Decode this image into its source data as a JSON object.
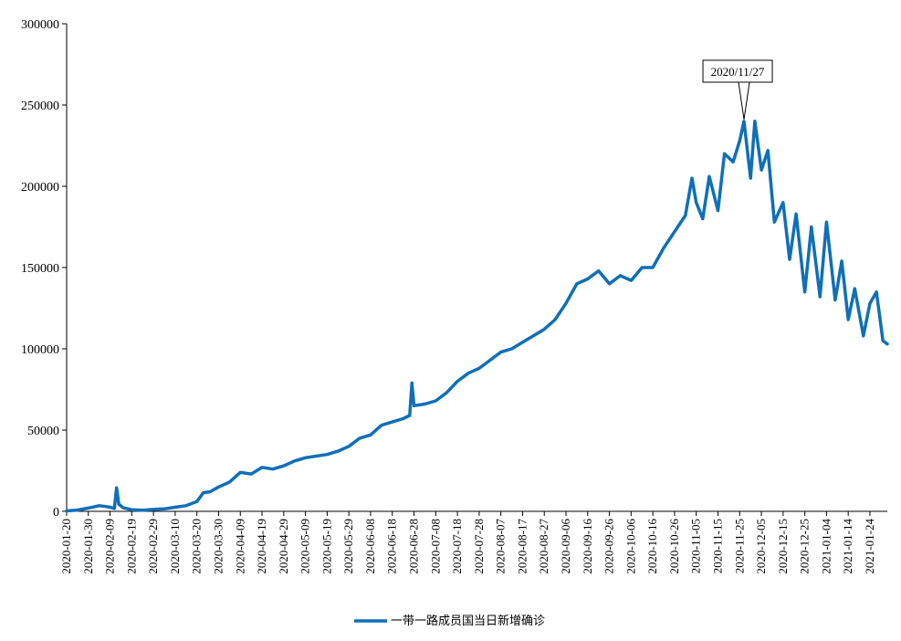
{
  "chart_data": {
    "type": "line",
    "title": "",
    "xlabel": "",
    "ylabel": "",
    "ylim": [
      0,
      300000
    ],
    "yticks": [
      0,
      50000,
      100000,
      150000,
      200000,
      250000,
      300000
    ],
    "yticks_labels": [
      "0",
      "50000",
      "100000",
      "150000",
      "200000",
      "250000",
      "300000"
    ],
    "xticks_labels": [
      "2020-01-20",
      "2020-01-30",
      "2020-02-09",
      "2020-02-19",
      "2020-02-29",
      "2020-03-10",
      "2020-03-20",
      "2020-03-30",
      "2020-04-09",
      "2020-04-19",
      "2020-04-29",
      "2020-05-09",
      "2020-05-19",
      "2020-05-29",
      "2020-06-08",
      "2020-06-18",
      "2020-06-28",
      "2020-07-08",
      "2020-07-18",
      "2020-07-28",
      "2020-08-07",
      "2020-08-17",
      "2020-08-27",
      "2020-09-06",
      "2020-09-16",
      "2020-09-26",
      "2020-10-06",
      "2020-10-16",
      "2020-10-26",
      "2020-11-05",
      "2020-11-15",
      "2020-11-25",
      "2020-12-05",
      "2020-12-15",
      "2020-12-25",
      "2021-01-04",
      "2021-01-14",
      "2021-01-24"
    ],
    "x_start": "2020-01-20",
    "x_end": "2021-02-01",
    "grid": false,
    "legend_position": "bottom",
    "line_color": "#0F6FB8",
    "series": [
      {
        "name": "一带一路成员国当日新增确诊",
        "points": [
          [
            "2020-01-20",
            300
          ],
          [
            "2020-01-25",
            800
          ],
          [
            "2020-01-30",
            2000
          ],
          [
            "2020-02-04",
            3500
          ],
          [
            "2020-02-07",
            3000
          ],
          [
            "2020-02-09",
            2500
          ],
          [
            "2020-02-11",
            1800
          ],
          [
            "2020-02-12",
            14500
          ],
          [
            "2020-02-13",
            4500
          ],
          [
            "2020-02-15",
            2200
          ],
          [
            "2020-02-19",
            1000
          ],
          [
            "2020-02-24",
            700
          ],
          [
            "2020-02-29",
            1200
          ],
          [
            "2020-03-05",
            1500
          ],
          [
            "2020-03-10",
            2500
          ],
          [
            "2020-03-15",
            3500
          ],
          [
            "2020-03-20",
            6000
          ],
          [
            "2020-03-23",
            11500
          ],
          [
            "2020-03-26",
            12000
          ],
          [
            "2020-03-30",
            15000
          ],
          [
            "2020-04-04",
            18000
          ],
          [
            "2020-04-09",
            24000
          ],
          [
            "2020-04-14",
            23000
          ],
          [
            "2020-04-19",
            27000
          ],
          [
            "2020-04-24",
            26000
          ],
          [
            "2020-04-29",
            28000
          ],
          [
            "2020-05-04",
            31000
          ],
          [
            "2020-05-09",
            33000
          ],
          [
            "2020-05-14",
            34000
          ],
          [
            "2020-05-19",
            35000
          ],
          [
            "2020-05-24",
            37000
          ],
          [
            "2020-05-29",
            40000
          ],
          [
            "2020-06-03",
            45000
          ],
          [
            "2020-06-08",
            47000
          ],
          [
            "2020-06-13",
            53000
          ],
          [
            "2020-06-18",
            55000
          ],
          [
            "2020-06-23",
            57000
          ],
          [
            "2020-06-26",
            59000
          ],
          [
            "2020-06-27",
            79000
          ],
          [
            "2020-06-28",
            65000
          ],
          [
            "2020-07-03",
            66000
          ],
          [
            "2020-07-08",
            68000
          ],
          [
            "2020-07-13",
            73000
          ],
          [
            "2020-07-18",
            80000
          ],
          [
            "2020-07-23",
            85000
          ],
          [
            "2020-07-28",
            88000
          ],
          [
            "2020-08-02",
            93000
          ],
          [
            "2020-08-07",
            98000
          ],
          [
            "2020-08-12",
            100000
          ],
          [
            "2020-08-17",
            104000
          ],
          [
            "2020-08-22",
            108000
          ],
          [
            "2020-08-27",
            112000
          ],
          [
            "2020-09-01",
            118000
          ],
          [
            "2020-09-06",
            128000
          ],
          [
            "2020-09-11",
            140000
          ],
          [
            "2020-09-16",
            143000
          ],
          [
            "2020-09-21",
            148000
          ],
          [
            "2020-09-26",
            140000
          ],
          [
            "2020-10-01",
            145000
          ],
          [
            "2020-10-06",
            142000
          ],
          [
            "2020-10-11",
            150000
          ],
          [
            "2020-10-16",
            150000
          ],
          [
            "2020-10-21",
            162000
          ],
          [
            "2020-10-26",
            172000
          ],
          [
            "2020-10-31",
            182000
          ],
          [
            "2020-11-03",
            205000
          ],
          [
            "2020-11-05",
            190000
          ],
          [
            "2020-11-08",
            180000
          ],
          [
            "2020-11-11",
            206000
          ],
          [
            "2020-11-15",
            185000
          ],
          [
            "2020-11-18",
            220000
          ],
          [
            "2020-11-22",
            215000
          ],
          [
            "2020-11-25",
            228000
          ],
          [
            "2020-11-27",
            240000
          ],
          [
            "2020-11-30",
            205000
          ],
          [
            "2020-12-02",
            240000
          ],
          [
            "2020-12-05",
            210000
          ],
          [
            "2020-12-08",
            222000
          ],
          [
            "2020-12-11",
            178000
          ],
          [
            "2020-12-15",
            190000
          ],
          [
            "2020-12-18",
            155000
          ],
          [
            "2020-12-21",
            183000
          ],
          [
            "2020-12-25",
            135000
          ],
          [
            "2020-12-28",
            175000
          ],
          [
            "2021-01-01",
            132000
          ],
          [
            "2021-01-04",
            178000
          ],
          [
            "2021-01-08",
            130000
          ],
          [
            "2021-01-11",
            154000
          ],
          [
            "2021-01-14",
            118000
          ],
          [
            "2021-01-17",
            137000
          ],
          [
            "2021-01-21",
            108000
          ],
          [
            "2021-01-24",
            128000
          ],
          [
            "2021-01-27",
            135000
          ],
          [
            "2021-01-30",
            105000
          ],
          [
            "2021-02-01",
            103000
          ]
        ]
      }
    ],
    "annotations": [
      {
        "date": "2020-11-27",
        "value": 240000,
        "text": "2020/11/27"
      }
    ]
  }
}
